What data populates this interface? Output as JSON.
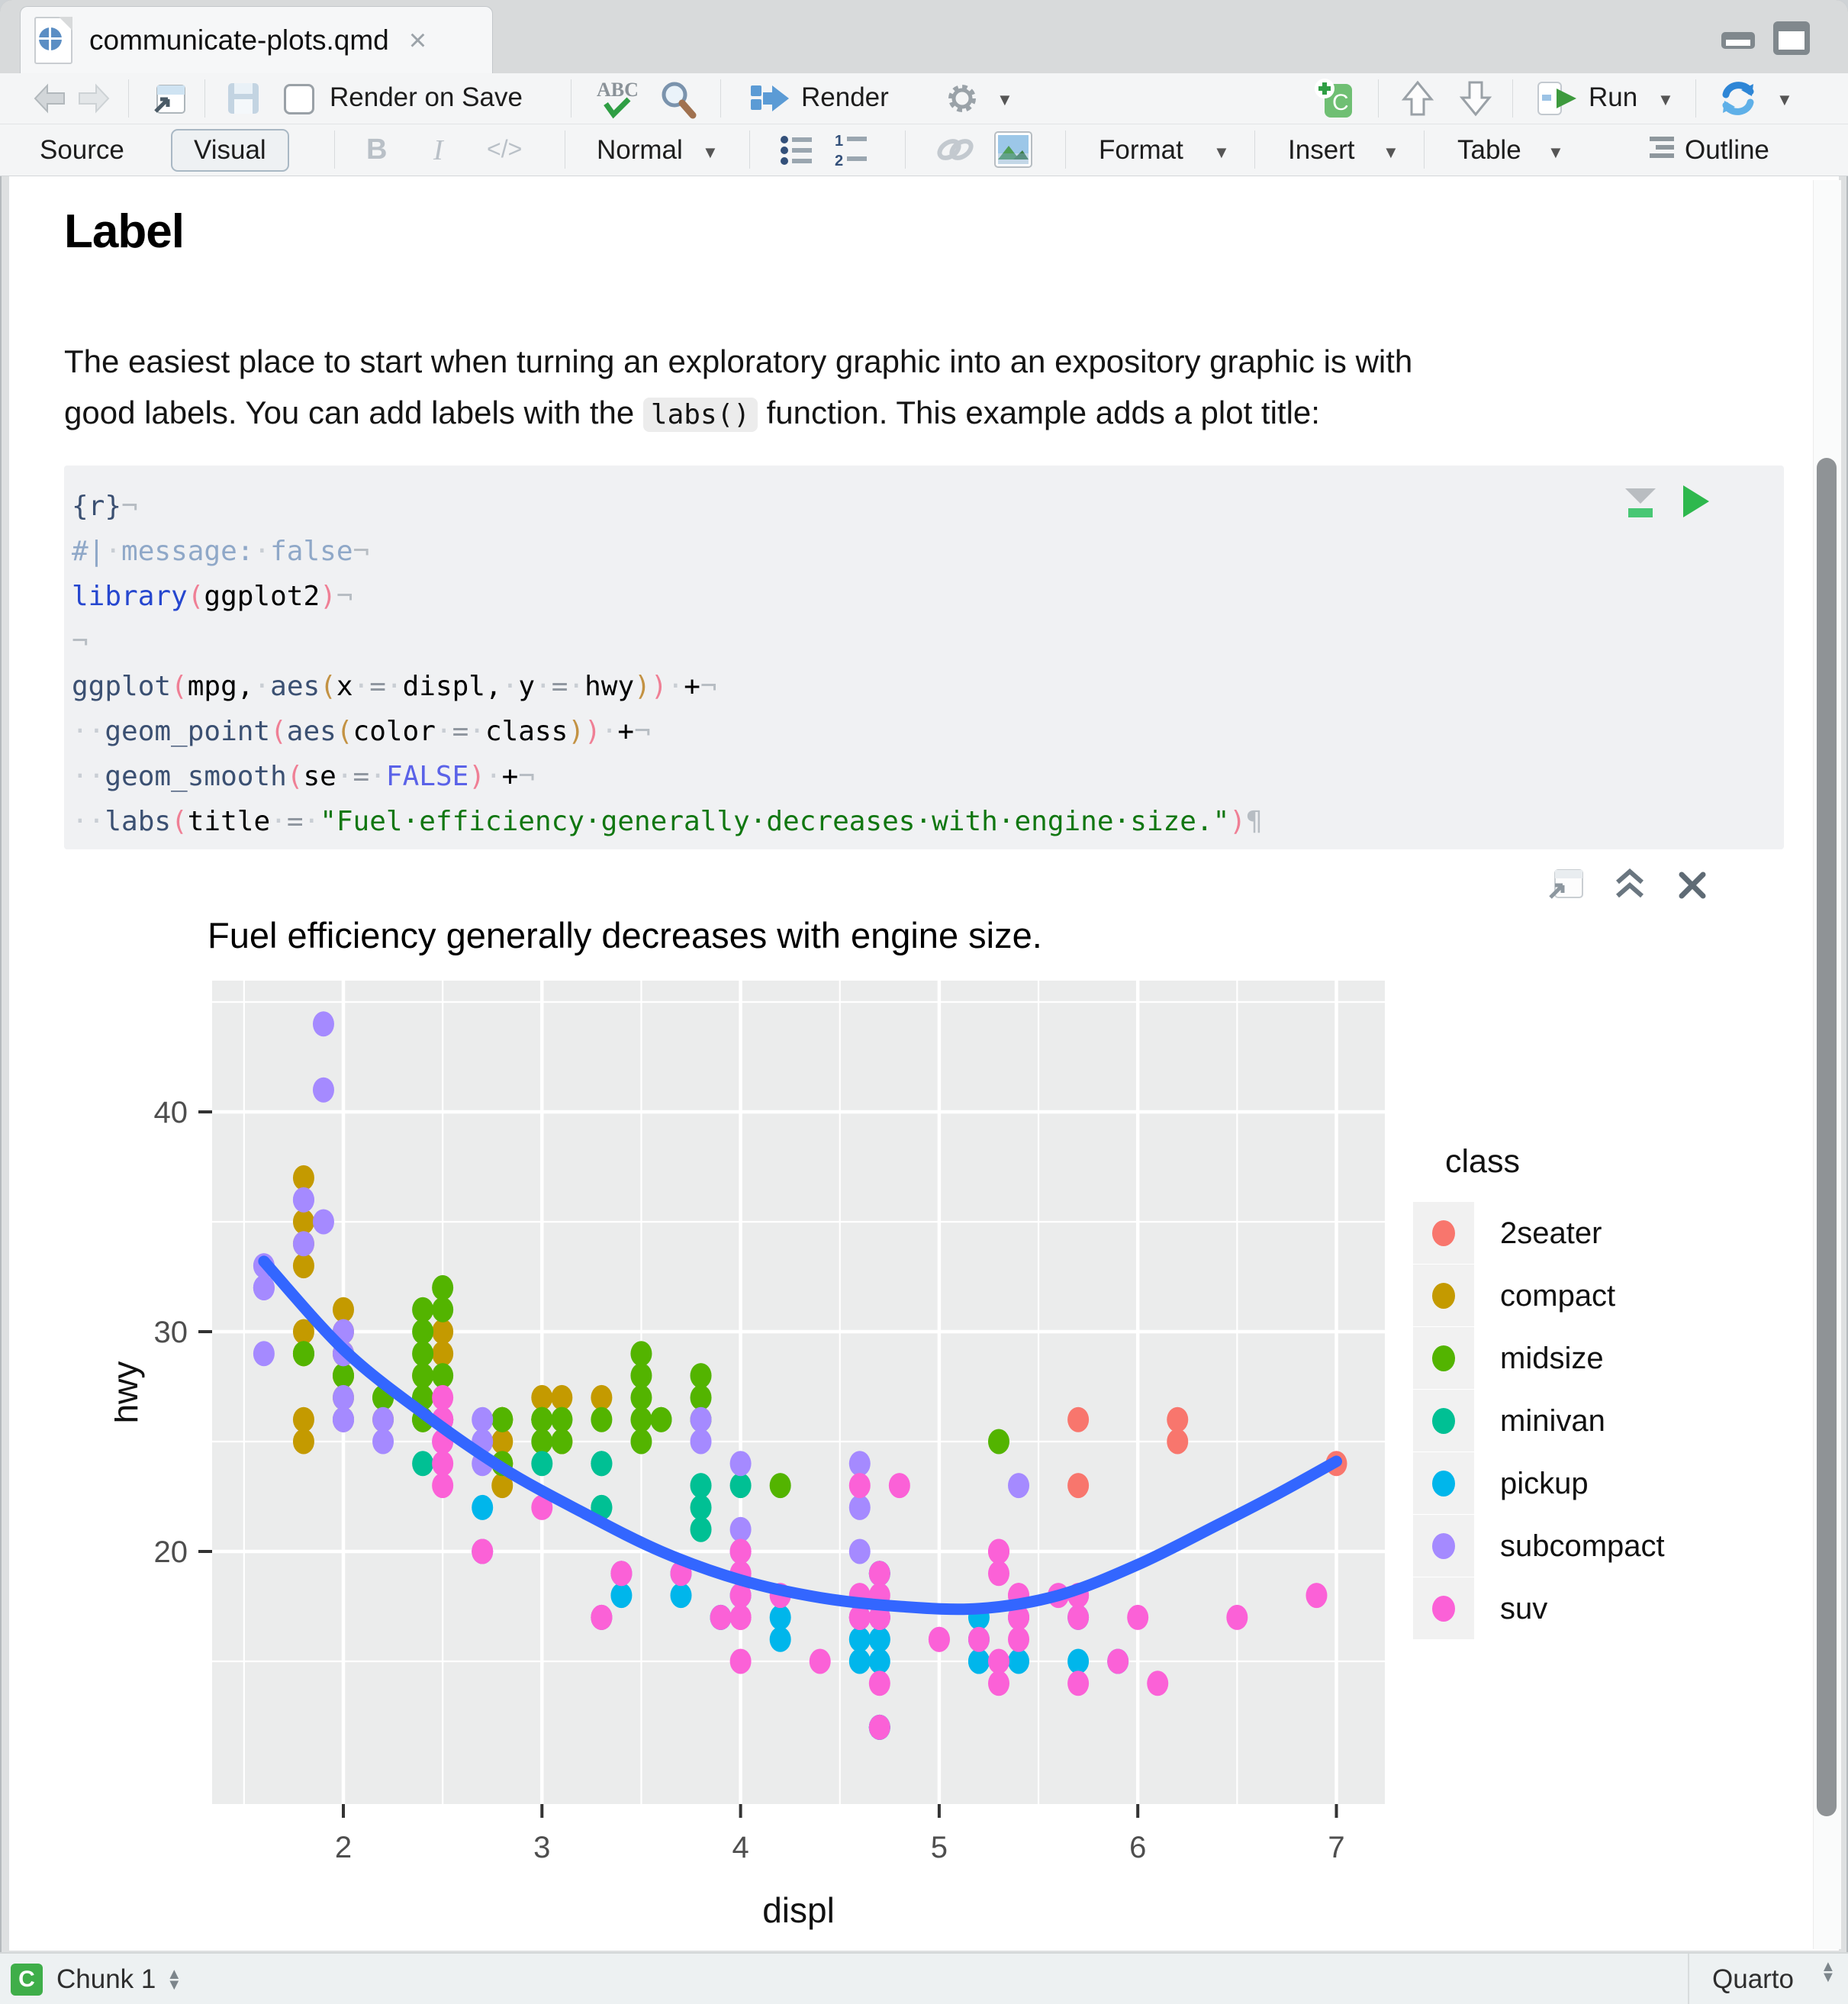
{
  "tab": {
    "title": "communicate-plots.qmd",
    "close_glyph": "×"
  },
  "toolbar": {
    "render_on_save": "Render on Save",
    "render": "Render",
    "run": "Run"
  },
  "format_bar": {
    "source": "Source",
    "visual": "Visual",
    "bold": "B",
    "italic": "I",
    "code_glyph": "</>",
    "paragraph_style": "Normal",
    "format": "Format",
    "insert": "Insert",
    "table": "Table",
    "outline": "Outline"
  },
  "document": {
    "heading": "Label",
    "para_line1": "The easiest place to start when turning an exploratory graphic into an expository graphic is with",
    "para_line2_pre": "good labels. You can add labels with the ",
    "para_code": "labs()",
    "para_line2_post": " function. This example adds a plot title:"
  },
  "code_chunk": {
    "lines": [
      [
        [
          "{r}",
          "fn"
        ],
        [
          "¬",
          "pl"
        ]
      ],
      [
        [
          "#|",
          "cm"
        ],
        [
          "·",
          "dt"
        ],
        [
          "message:",
          "cm"
        ],
        [
          "·",
          "dt"
        ],
        [
          "false",
          "cm"
        ],
        [
          "¬",
          "pl"
        ]
      ],
      [
        [
          "library",
          "kw"
        ],
        [
          "(",
          "p1"
        ],
        [
          "ggplot2",
          "id"
        ],
        [
          ")",
          "p1"
        ],
        [
          "¬",
          "pl"
        ]
      ],
      [
        [
          "¬",
          "pl"
        ]
      ],
      [
        [
          "ggplot",
          "fn"
        ],
        [
          "(",
          "p1"
        ],
        [
          "mpg",
          "id"
        ],
        [
          ",",
          "id"
        ],
        [
          "·",
          "dt"
        ],
        [
          "aes",
          "fn"
        ],
        [
          "(",
          "p2"
        ],
        [
          "x",
          "id"
        ],
        [
          "·",
          "dt"
        ],
        [
          "=",
          "op"
        ],
        [
          "·",
          "dt"
        ],
        [
          "displ",
          "id"
        ],
        [
          ",",
          "id"
        ],
        [
          "·",
          "dt"
        ],
        [
          "y",
          "id"
        ],
        [
          "·",
          "dt"
        ],
        [
          "=",
          "op"
        ],
        [
          "·",
          "dt"
        ],
        [
          "hwy",
          "id"
        ],
        [
          ")",
          "p2"
        ],
        [
          ")",
          "p1"
        ],
        [
          "·",
          "dt"
        ],
        [
          "+",
          "id"
        ],
        [
          "¬",
          "pl"
        ]
      ],
      [
        [
          "··",
          "dt"
        ],
        [
          "geom_point",
          "fn"
        ],
        [
          "(",
          "p1"
        ],
        [
          "aes",
          "fn"
        ],
        [
          "(",
          "p2"
        ],
        [
          "color",
          "id"
        ],
        [
          "·",
          "dt"
        ],
        [
          "=",
          "op"
        ],
        [
          "·",
          "dt"
        ],
        [
          "class",
          "id"
        ],
        [
          ")",
          "p2"
        ],
        [
          ")",
          "p1"
        ],
        [
          "·",
          "dt"
        ],
        [
          "+",
          "id"
        ],
        [
          "¬",
          "pl"
        ]
      ],
      [
        [
          "··",
          "dt"
        ],
        [
          "geom_smooth",
          "fn"
        ],
        [
          "(",
          "p1"
        ],
        [
          "se",
          "id"
        ],
        [
          "·",
          "dt"
        ],
        [
          "=",
          "op"
        ],
        [
          "·",
          "dt"
        ],
        [
          "FALSE",
          "ct"
        ],
        [
          ")",
          "p1"
        ],
        [
          "·",
          "dt"
        ],
        [
          "+",
          "id"
        ],
        [
          "¬",
          "pl"
        ]
      ],
      [
        [
          "··",
          "dt"
        ],
        [
          "labs",
          "fn"
        ],
        [
          "(",
          "p1"
        ],
        [
          "title",
          "id"
        ],
        [
          "·",
          "dt"
        ],
        [
          "=",
          "op"
        ],
        [
          "·",
          "dt"
        ],
        [
          "\"Fuel·efficiency·generally·decreases·with·engine·size.\"",
          "st"
        ],
        [
          ")",
          "p1"
        ],
        [
          "¶",
          "pl"
        ]
      ]
    ]
  },
  "chart_data": {
    "type": "scatter",
    "title": "Fuel efficiency generally decreases with engine size.",
    "xlabel": "displ",
    "ylabel": "hwy",
    "x_ticks": [
      2,
      3,
      4,
      5,
      6,
      7
    ],
    "y_ticks": [
      20,
      30,
      40
    ],
    "xlim": [
      1.34,
      7.24
    ],
    "ylim": [
      8.5,
      46
    ],
    "grid": "major-and-minor",
    "legend_position": "right",
    "legend_title": "class",
    "panel_color": "#EBECEC",
    "smooth_color": "#3366FF",
    "classes": [
      {
        "name": "2seater",
        "color": "#F8766D"
      },
      {
        "name": "compact",
        "color": "#C49A00"
      },
      {
        "name": "midsize",
        "color": "#53B400"
      },
      {
        "name": "minivan",
        "color": "#00C094"
      },
      {
        "name": "pickup",
        "color": "#00B6EB"
      },
      {
        "name": "subcompact",
        "color": "#A58AFF"
      },
      {
        "name": "suv",
        "color": "#FB61D7"
      }
    ],
    "points": [
      [
        5.7,
        26,
        0
      ],
      [
        5.7,
        23,
        0
      ],
      [
        6.2,
        26,
        0
      ],
      [
        6.2,
        25,
        0
      ],
      [
        7.0,
        24,
        0
      ],
      [
        1.8,
        29,
        1
      ],
      [
        1.8,
        29,
        1
      ],
      [
        2.0,
        31,
        1
      ],
      [
        2.0,
        30,
        1
      ],
      [
        2.8,
        26,
        1
      ],
      [
        2.8,
        26,
        1
      ],
      [
        3.1,
        27,
        1
      ],
      [
        1.8,
        26,
        1
      ],
      [
        1.8,
        25,
        1
      ],
      [
        2.0,
        28,
        1
      ],
      [
        2.0,
        27,
        1
      ],
      [
        2.8,
        25,
        1
      ],
      [
        2.8,
        25,
        1
      ],
      [
        3.1,
        25,
        1
      ],
      [
        3.1,
        25,
        1
      ],
      [
        1.8,
        30,
        1
      ],
      [
        1.8,
        33,
        1
      ],
      [
        1.8,
        34,
        1
      ],
      [
        1.8,
        35,
        1
      ],
      [
        1.8,
        37,
        1
      ],
      [
        2.0,
        29,
        1
      ],
      [
        2.0,
        28,
        1
      ],
      [
        2.0,
        26,
        1
      ],
      [
        2.8,
        24,
        1
      ],
      [
        2.8,
        24,
        1
      ],
      [
        2.0,
        29,
        1
      ],
      [
        2.0,
        29,
        1
      ],
      [
        2.0,
        26,
        1
      ],
      [
        2.5,
        29,
        1
      ],
      [
        2.5,
        30,
        1
      ],
      [
        2.8,
        24,
        1
      ],
      [
        2.8,
        23,
        1
      ],
      [
        2.2,
        26,
        1
      ],
      [
        2.2,
        27,
        1
      ],
      [
        2.4,
        28,
        1
      ],
      [
        2.4,
        26,
        1
      ],
      [
        3.0,
        26,
        1
      ],
      [
        3.0,
        27,
        1
      ],
      [
        3.3,
        27,
        1
      ],
      [
        2.8,
        24,
        2
      ],
      [
        3.1,
        25,
        2
      ],
      [
        4.2,
        23,
        2
      ],
      [
        2.4,
        27,
        2
      ],
      [
        2.4,
        30,
        2
      ],
      [
        3.1,
        26,
        2
      ],
      [
        3.5,
        29,
        2
      ],
      [
        3.6,
        26,
        2
      ],
      [
        2.4,
        26,
        2
      ],
      [
        2.4,
        27,
        2
      ],
      [
        2.4,
        26,
        2
      ],
      [
        2.4,
        26,
        2
      ],
      [
        2.5,
        28,
        2
      ],
      [
        2.5,
        26,
        2
      ],
      [
        3.3,
        26,
        2
      ],
      [
        2.4,
        29,
        2
      ],
      [
        2.4,
        27,
        2
      ],
      [
        2.5,
        31,
        2
      ],
      [
        2.5,
        32,
        2
      ],
      [
        3.5,
        27,
        2
      ],
      [
        3.5,
        26,
        2
      ],
      [
        3.0,
        26,
        2
      ],
      [
        3.0,
        25,
        2
      ],
      [
        3.5,
        25,
        2
      ],
      [
        3.1,
        26,
        2
      ],
      [
        3.8,
        26,
        2
      ],
      [
        3.8,
        28,
        2
      ],
      [
        3.8,
        27,
        2
      ],
      [
        5.3,
        25,
        2
      ],
      [
        2.2,
        27,
        2
      ],
      [
        2.2,
        27,
        2
      ],
      [
        2.4,
        28,
        2
      ],
      [
        2.4,
        31,
        2
      ],
      [
        3.0,
        26,
        2
      ],
      [
        3.0,
        26,
        2
      ],
      [
        3.5,
        28,
        2
      ],
      [
        1.8,
        29,
        2
      ],
      [
        1.8,
        29,
        2
      ],
      [
        2.0,
        28,
        2
      ],
      [
        2.8,
        26,
        2
      ],
      [
        2.8,
        26,
        2
      ],
      [
        3.6,
        26,
        2
      ],
      [
        2.4,
        24,
        3
      ],
      [
        3.0,
        24,
        3
      ],
      [
        3.3,
        22,
        3
      ],
      [
        3.3,
        22,
        3
      ],
      [
        3.3,
        24,
        3
      ],
      [
        3.3,
        24,
        3
      ],
      [
        3.3,
        17,
        3
      ],
      [
        3.8,
        22,
        3
      ],
      [
        3.8,
        21,
        3
      ],
      [
        3.8,
        23,
        3
      ],
      [
        4.0,
        23,
        3
      ],
      [
        3.7,
        19,
        4
      ],
      [
        3.7,
        18,
        4
      ],
      [
        3.9,
        17,
        4
      ],
      [
        3.9,
        17,
        4
      ],
      [
        4.7,
        19,
        4
      ],
      [
        4.7,
        19,
        4
      ],
      [
        4.7,
        12,
        4
      ],
      [
        5.2,
        17,
        4
      ],
      [
        5.2,
        15,
        4
      ],
      [
        4.7,
        16,
        4
      ],
      [
        4.7,
        17,
        4
      ],
      [
        4.7,
        15,
        4
      ],
      [
        4.7,
        12,
        4
      ],
      [
        4.7,
        12,
        4
      ],
      [
        5.2,
        15,
        4
      ],
      [
        5.2,
        16,
        4
      ],
      [
        5.7,
        15,
        4
      ],
      [
        4.2,
        17,
        4
      ],
      [
        4.2,
        16,
        4
      ],
      [
        4.6,
        15,
        4
      ],
      [
        4.6,
        16,
        4
      ],
      [
        4.6,
        17,
        4
      ],
      [
        5.4,
        15,
        4
      ],
      [
        5.4,
        17,
        4
      ],
      [
        2.7,
        22,
        4
      ],
      [
        2.7,
        20,
        4
      ],
      [
        3.4,
        19,
        4
      ],
      [
        3.4,
        18,
        4
      ],
      [
        4.0,
        20,
        4
      ],
      [
        4.0,
        18,
        4
      ],
      [
        4.7,
        17,
        4
      ],
      [
        4.7,
        17,
        4
      ],
      [
        4.7,
        16,
        4
      ],
      [
        5.7,
        17,
        4
      ],
      [
        5.9,
        15,
        4
      ],
      [
        1.6,
        33,
        5
      ],
      [
        1.6,
        32,
        5
      ],
      [
        1.6,
        32,
        5
      ],
      [
        1.6,
        29,
        5
      ],
      [
        1.6,
        32,
        5
      ],
      [
        1.8,
        34,
        5
      ],
      [
        1.8,
        36,
        5
      ],
      [
        1.8,
        36,
        5
      ],
      [
        2.0,
        29,
        5
      ],
      [
        1.9,
        44,
        5
      ],
      [
        1.9,
        41,
        5
      ],
      [
        1.9,
        35,
        5
      ],
      [
        2.0,
        30,
        5
      ],
      [
        2.0,
        29,
        5
      ],
      [
        2.0,
        26,
        5
      ],
      [
        2.0,
        26,
        5
      ],
      [
        2.0,
        27,
        5
      ],
      [
        2.0,
        26,
        5
      ],
      [
        2.0,
        26,
        5
      ],
      [
        2.7,
        26,
        5
      ],
      [
        2.7,
        25,
        5
      ],
      [
        2.7,
        24,
        5
      ],
      [
        3.8,
        26,
        5
      ],
      [
        3.8,
        25,
        5
      ],
      [
        4.0,
        24,
        5
      ],
      [
        4.0,
        21,
        5
      ],
      [
        4.6,
        24,
        5
      ],
      [
        4.6,
        22,
        5
      ],
      [
        4.6,
        20,
        5
      ],
      [
        5.4,
        23,
        5
      ],
      [
        2.2,
        26,
        5
      ],
      [
        2.2,
        25,
        5
      ],
      [
        2.5,
        26,
        5
      ],
      [
        2.5,
        25,
        5
      ],
      [
        5.3,
        20,
        6
      ],
      [
        5.3,
        15,
        6
      ],
      [
        5.3,
        20,
        6
      ],
      [
        5.7,
        17,
        6
      ],
      [
        6.0,
        17,
        6
      ],
      [
        5.3,
        14,
        6
      ],
      [
        5.3,
        19,
        6
      ],
      [
        5.7,
        14,
        6
      ],
      [
        6.5,
        17,
        6
      ],
      [
        3.9,
        17,
        6
      ],
      [
        4.7,
        17,
        6
      ],
      [
        4.7,
        12,
        6
      ],
      [
        4.7,
        17,
        6
      ],
      [
        5.2,
        16,
        6
      ],
      [
        5.7,
        18,
        6
      ],
      [
        5.9,
        15,
        6
      ],
      [
        4.6,
        17,
        6
      ],
      [
        5.4,
        17,
        6
      ],
      [
        5.4,
        18,
        6
      ],
      [
        4.0,
        17,
        6
      ],
      [
        4.0,
        17,
        6
      ],
      [
        4.0,
        19,
        6
      ],
      [
        4.6,
        17,
        6
      ],
      [
        5.0,
        16,
        6
      ],
      [
        4.0,
        18,
        6
      ],
      [
        3.0,
        22,
        6
      ],
      [
        3.7,
        19,
        6
      ],
      [
        4.0,
        19,
        6
      ],
      [
        4.7,
        17,
        6
      ],
      [
        4.7,
        19,
        6
      ],
      [
        4.7,
        14,
        6
      ],
      [
        5.7,
        18,
        6
      ],
      [
        6.1,
        14,
        6
      ],
      [
        4.0,
        15,
        6
      ],
      [
        4.2,
        18,
        6
      ],
      [
        4.4,
        15,
        6
      ],
      [
        4.6,
        18,
        6
      ],
      [
        5.4,
        17,
        6
      ],
      [
        5.4,
        16,
        6
      ],
      [
        5.4,
        18,
        6
      ],
      [
        4.0,
        17,
        6
      ],
      [
        4.0,
        19,
        6
      ],
      [
        4.6,
        17,
        6
      ],
      [
        5.0,
        16,
        6
      ],
      [
        3.3,
        17,
        6
      ],
      [
        3.3,
        17,
        6
      ],
      [
        4.0,
        20,
        6
      ],
      [
        5.6,
        18,
        6
      ],
      [
        2.5,
        26,
        6
      ],
      [
        2.5,
        24,
        6
      ],
      [
        2.5,
        26,
        6
      ],
      [
        2.5,
        25,
        6
      ],
      [
        2.5,
        27,
        6
      ],
      [
        2.5,
        23,
        6
      ],
      [
        2.7,
        20,
        6
      ],
      [
        2.7,
        20,
        6
      ],
      [
        3.4,
        19,
        6
      ],
      [
        3.4,
        19,
        6
      ],
      [
        4.0,
        20,
        6
      ],
      [
        4.7,
        17,
        6
      ],
      [
        4.7,
        18,
        6
      ],
      [
        4.6,
        23,
        6
      ],
      [
        4.8,
        23,
        6
      ],
      [
        6.9,
        18,
        6
      ]
    ],
    "smooth_line": [
      [
        1.6,
        33.2
      ],
      [
        2.0,
        29.2
      ],
      [
        2.4,
        26.3
      ],
      [
        2.8,
        23.8
      ],
      [
        3.2,
        21.8
      ],
      [
        3.6,
        20.0
      ],
      [
        4.0,
        18.7
      ],
      [
        4.4,
        17.9
      ],
      [
        4.8,
        17.5
      ],
      [
        5.2,
        17.4
      ],
      [
        5.6,
        18.0
      ],
      [
        6.0,
        19.4
      ],
      [
        6.4,
        21.2
      ],
      [
        6.7,
        22.6
      ],
      [
        7.0,
        24.1
      ]
    ]
  },
  "status_bar": {
    "badge": "C",
    "context": "Chunk 1",
    "mode": "Quarto"
  }
}
